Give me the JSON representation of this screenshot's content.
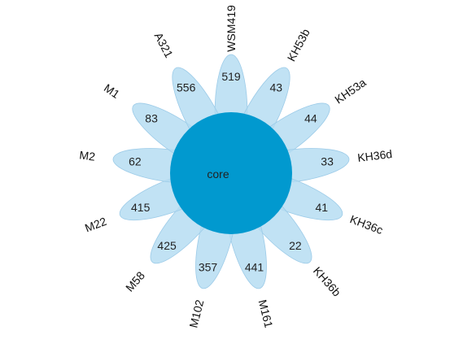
{
  "chart_data": {
    "type": "flower",
    "core_label": "core",
    "petal_color": "#b3dcf2",
    "petal_edge_color": "#9ccbe8",
    "core_color": "#0199cf",
    "petals": [
      {
        "name": "WSM419",
        "count": "519"
      },
      {
        "name": "KH53b",
        "count": "43"
      },
      {
        "name": "KH53a",
        "count": "44"
      },
      {
        "name": "KH36d",
        "count": "33"
      },
      {
        "name": "KH36c",
        "count": "41"
      },
      {
        "name": "KH36b",
        "count": "22"
      },
      {
        "name": "M161",
        "count": "441"
      },
      {
        "name": "M102",
        "count": "357"
      },
      {
        "name": "M58",
        "count": "425"
      },
      {
        "name": "M22",
        "count": "415"
      },
      {
        "name": "M2",
        "count": "62"
      },
      {
        "name": "M1",
        "count": "83"
      },
      {
        "name": "A321",
        "count": "556"
      }
    ]
  }
}
